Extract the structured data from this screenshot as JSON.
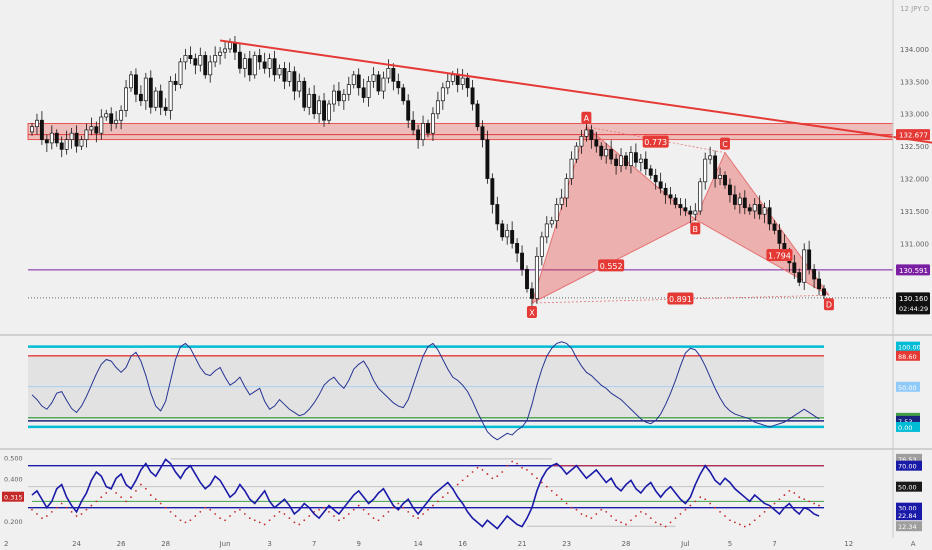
{
  "chart_data": {
    "type": "candlestick",
    "symbol_label": "12 JPY D",
    "price_axis": {
      "range": [
        130.08,
        134.13
      ],
      "ticks": [
        "134.000",
        "133.500",
        "133.000",
        "132.500",
        "132.000",
        "131.500",
        "131.000"
      ],
      "tick_values": [
        134.0,
        133.5,
        133.0,
        132.5,
        132.0,
        131.5,
        131.0
      ]
    },
    "time_axis": {
      "labels": [
        "2",
        "24",
        "26",
        "28",
        "Jun",
        "3",
        "7",
        "9",
        "14",
        "16",
        "21",
        "23",
        "28",
        "Jul",
        "5",
        "7",
        "12",
        "A"
      ],
      "label_bars": [
        -3,
        9,
        18,
        27,
        39,
        48,
        57,
        66,
        78,
        87,
        99,
        108,
        120,
        132,
        141,
        150,
        165,
        178
      ]
    },
    "price_tags": [
      {
        "label": "132.677",
        "value": 132.677,
        "color": "#e53935"
      },
      {
        "label": "130.591",
        "value": 130.591,
        "color": "#7b1fa2"
      },
      {
        "label": "130.160",
        "value": 130.16,
        "color": "#111111",
        "sub": "02:44:29"
      }
    ],
    "resistance_zone": {
      "from": 132.6,
      "to": 132.85
    },
    "trendline": {
      "from_bar": 38,
      "from_price": 134.13,
      "to_bar": 185,
      "to_price": 132.52
    },
    "hlines": [
      {
        "value": 130.591,
        "color": "#7b1fa2"
      },
      {
        "value": 130.16,
        "color": "#666666",
        "dashed": true
      }
    ],
    "pattern": {
      "points": [
        {
          "label": "X",
          "bar": 101,
          "price": 130.08
        },
        {
          "label": "A",
          "bar": 112,
          "price": 132.8
        },
        {
          "label": "B",
          "bar": 134,
          "price": 131.37
        },
        {
          "label": "C",
          "bar": 140,
          "price": 132.4
        },
        {
          "label": "D",
          "bar": 161,
          "price": 130.2
        }
      ],
      "ratios": [
        {
          "label": "0.773",
          "bar": 126,
          "price": 132.57
        },
        {
          "label": "0.552",
          "bar": 117,
          "price": 130.66
        },
        {
          "label": "1.794",
          "bar": 151,
          "price": 130.82
        },
        {
          "label": "0.891",
          "bar": 131,
          "price": 130.15
        }
      ]
    },
    "candles": {
      "start_bar": 0,
      "closes": [
        132.8,
        132.9,
        132.6,
        132.55,
        132.7,
        132.55,
        132.45,
        132.6,
        132.7,
        132.5,
        132.6,
        132.75,
        132.8,
        132.7,
        132.95,
        133.0,
        132.85,
        132.9,
        133.05,
        133.4,
        133.6,
        133.3,
        133.2,
        133.55,
        133.1,
        133.35,
        133.1,
        133.05,
        133.5,
        133.45,
        133.8,
        133.9,
        133.85,
        133.75,
        133.9,
        133.6,
        133.8,
        133.9,
        133.95,
        134.0,
        134.1,
        133.95,
        133.7,
        133.85,
        133.6,
        133.9,
        133.8,
        133.7,
        133.85,
        133.6,
        133.7,
        133.5,
        133.65,
        133.35,
        133.5,
        133.1,
        133.3,
        133.0,
        133.2,
        132.9,
        133.15,
        133.35,
        133.2,
        133.3,
        133.45,
        133.6,
        133.4,
        133.25,
        133.5,
        133.6,
        133.35,
        133.55,
        133.7,
        133.5,
        133.4,
        133.2,
        132.9,
        132.75,
        132.6,
        132.85,
        132.7,
        133.0,
        133.2,
        133.4,
        133.5,
        133.6,
        133.45,
        133.55,
        133.4,
        133.15,
        132.8,
        132.6,
        132.0,
        131.6,
        131.3,
        131.1,
        131.2,
        131.0,
        130.85,
        130.6,
        130.3,
        130.15,
        130.8,
        131.1,
        131.3,
        131.35,
        131.6,
        131.7,
        132.0,
        132.3,
        132.5,
        132.65,
        132.75,
        132.6,
        132.5,
        132.35,
        132.45,
        132.3,
        132.2,
        132.35,
        132.2,
        132.4,
        132.25,
        132.3,
        132.15,
        132.05,
        131.95,
        131.85,
        131.75,
        131.7,
        131.6,
        131.55,
        131.5,
        131.45,
        131.5,
        131.95,
        132.3,
        132.35,
        132.0,
        132.05,
        131.9,
        131.75,
        131.6,
        131.7,
        131.55,
        131.5,
        131.6,
        131.45,
        131.55,
        131.3,
        131.2,
        131.0,
        130.85,
        130.7,
        130.55,
        130.4,
        130.9,
        130.6,
        130.45,
        130.3,
        130.2
      ]
    },
    "stoch_panel": {
      "levels": [
        {
          "label": "100.00",
          "value": 100,
          "color": "#00bcd4"
        },
        {
          "label": "88.60",
          "value": 88.6,
          "color": "#e53935"
        },
        {
          "label": "50.00",
          "value": 50,
          "color": "#90caf9"
        },
        {
          "label": "11.30",
          "value": 11.3,
          "color": "#43a047"
        },
        {
          "label": "7.53",
          "value": 7.53,
          "color": "#1a237e"
        },
        {
          "label": "0.00",
          "value": 0,
          "color": "#00bcd4"
        }
      ],
      "range": [
        -25,
        112
      ],
      "values": [
        40,
        34,
        26,
        22,
        30,
        42,
        44,
        33,
        23,
        18,
        26,
        38,
        52,
        66,
        78,
        84,
        82,
        74,
        68,
        74,
        88,
        93,
        82,
        64,
        42,
        26,
        20,
        32,
        58,
        84,
        100,
        104,
        98,
        86,
        74,
        66,
        64,
        70,
        74,
        62,
        52,
        56,
        62,
        50,
        40,
        44,
        48,
        32,
        22,
        26,
        34,
        28,
        22,
        18,
        14,
        16,
        22,
        30,
        40,
        52,
        58,
        62,
        54,
        48,
        58,
        72,
        78,
        82,
        72,
        58,
        48,
        42,
        36,
        30,
        26,
        24,
        34,
        52,
        70,
        88,
        100,
        104,
        96,
        84,
        72,
        62,
        58,
        52,
        44,
        32,
        18,
        6,
        -6,
        -12,
        -16,
        -12,
        -8,
        -10,
        -4,
        0,
        8,
        28,
        52,
        72,
        88,
        98,
        104,
        106,
        104,
        98,
        86,
        76,
        68,
        64,
        58,
        52,
        48,
        42,
        38,
        34,
        28,
        22,
        16,
        10,
        6,
        4,
        8,
        16,
        28,
        42,
        58,
        76,
        92,
        98,
        96,
        88,
        76,
        62,
        48,
        36,
        26,
        20,
        16,
        14,
        12,
        10,
        6,
        4,
        2,
        0,
        2,
        4,
        6,
        10,
        14,
        18,
        22,
        18,
        14,
        10
      ]
    },
    "osc_panel": {
      "left_ticks": [
        "0.500",
        "0.400",
        "0.315",
        "0.200"
      ],
      "left_tick_values": [
        0.5,
        0.4,
        0.315,
        0.2
      ],
      "left_range": [
        0.13,
        0.53
      ],
      "right_levels": [
        {
          "label": "76.53",
          "value": 76.53,
          "color": "#9e9e9e"
        },
        {
          "label": "70.00",
          "value": 70,
          "color": "#1a1aa8"
        },
        {
          "label": "50.00",
          "value": 50,
          "color": "#1a1a1a"
        },
        {
          "label": "30.00",
          "value": 30,
          "color": "#1a1aa8"
        },
        {
          "label": "22.84",
          "value": 22.84,
          "color": "#1a1aa8"
        },
        {
          "label": "12.34",
          "value": 12.34,
          "color": "#9e9e9e"
        }
      ],
      "right_range": [
        3,
        84
      ],
      "line_values": [
        42,
        46,
        38,
        30,
        36,
        48,
        52,
        40,
        32,
        26,
        36,
        44,
        56,
        64,
        60,
        50,
        48,
        58,
        62,
        52,
        48,
        56,
        66,
        72,
        64,
        60,
        68,
        76,
        72,
        64,
        58,
        66,
        70,
        62,
        54,
        48,
        52,
        60,
        56,
        48,
        40,
        44,
        52,
        46,
        38,
        34,
        40,
        46,
        36,
        30,
        34,
        38,
        32,
        24,
        28,
        34,
        30,
        24,
        20,
        26,
        32,
        28,
        24,
        30,
        36,
        42,
        46,
        40,
        34,
        38,
        44,
        48,
        40,
        32,
        28,
        34,
        38,
        30,
        24,
        30,
        36,
        42,
        46,
        50,
        54,
        48,
        40,
        34,
        26,
        20,
        16,
        12,
        18,
        14,
        10,
        16,
        22,
        18,
        14,
        12,
        20,
        30,
        46,
        58,
        66,
        70,
        72,
        68,
        62,
        66,
        70,
        64,
        58,
        62,
        66,
        60,
        54,
        58,
        50,
        46,
        52,
        56,
        48,
        44,
        50,
        54,
        46,
        40,
        46,
        50,
        44,
        38,
        34,
        40,
        52,
        62,
        70,
        64,
        56,
        52,
        58,
        54,
        48,
        44,
        40,
        36,
        42,
        38,
        34,
        32,
        28,
        24,
        30,
        34,
        28,
        24,
        30,
        28,
        24,
        22
      ],
      "dot_values": [
        28,
        24,
        20,
        22,
        26,
        30,
        34,
        30,
        26,
        22,
        24,
        28,
        32,
        36,
        40,
        44,
        48,
        44,
        40,
        36,
        40,
        46,
        52,
        48,
        42,
        38,
        34,
        30,
        26,
        22,
        18,
        16,
        18,
        22,
        26,
        30,
        28,
        24,
        20,
        18,
        22,
        26,
        28,
        24,
        20,
        18,
        16,
        14,
        18,
        22,
        26,
        24,
        20,
        16,
        14,
        18,
        22,
        26,
        28,
        30,
        26,
        22,
        18,
        20,
        24,
        28,
        32,
        28,
        24,
        20,
        18,
        22,
        26,
        30,
        34,
        30,
        26,
        22,
        20,
        24,
        28,
        32,
        36,
        40,
        44,
        48,
        52,
        56,
        60,
        64,
        68,
        66,
        62,
        58,
        60,
        64,
        70,
        74,
        72,
        68,
        66,
        62,
        58,
        54,
        50,
        46,
        42,
        38,
        34,
        30,
        28,
        24,
        22,
        20,
        24,
        28,
        26,
        22,
        18,
        16,
        14,
        18,
        22,
        26,
        24,
        20,
        16,
        14,
        12,
        16,
        20,
        24,
        28,
        32,
        36,
        40,
        38,
        34,
        30,
        26,
        22,
        18,
        16,
        14,
        12,
        14,
        18,
        22,
        26,
        30,
        34,
        38,
        42,
        46,
        44,
        40,
        38,
        36,
        34,
        32
      ]
    }
  }
}
